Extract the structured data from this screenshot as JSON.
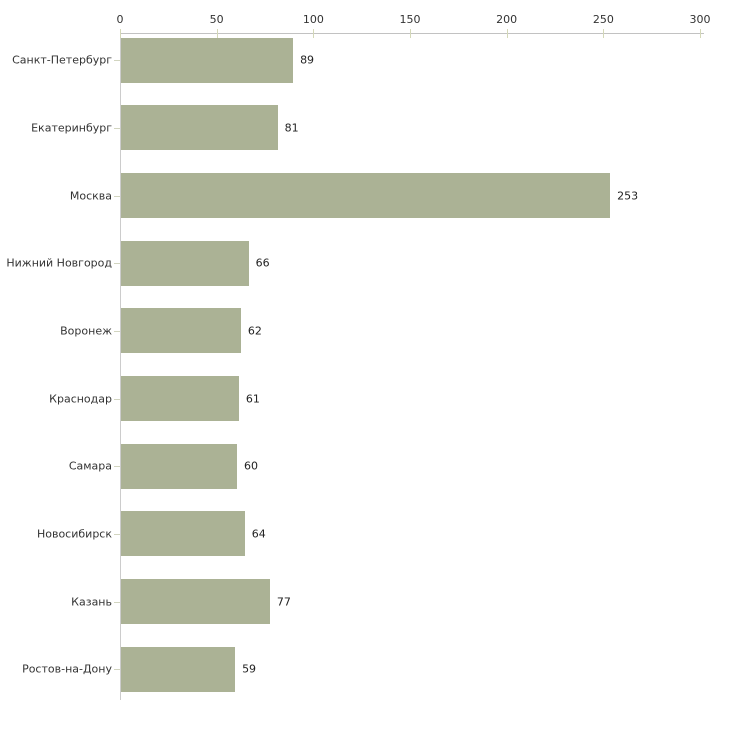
{
  "chart_data": {
    "type": "bar",
    "orientation": "horizontal",
    "title": "",
    "xlabel": "",
    "ylabel": "",
    "categories": [
      "Санкт-Петербург",
      "Екатеринбург",
      "Москва",
      "Нижний Новгород",
      "Воронеж",
      "Краснодар",
      "Самара",
      "Новосибирск",
      "Казань",
      "Ростов-на-Дону"
    ],
    "values": [
      89,
      81,
      253,
      66,
      62,
      61,
      60,
      64,
      77,
      59
    ],
    "data_labels": [
      "89",
      "81",
      "253",
      "66",
      "62",
      "61",
      "60",
      "64",
      "77",
      "59"
    ],
    "xlim": [
      0,
      300
    ],
    "x_ticks": [
      0,
      50,
      100,
      150,
      200,
      250,
      300
    ],
    "x_tick_labels": [
      "0",
      "50",
      "100",
      "150",
      "200",
      "250",
      "300"
    ],
    "grid": false,
    "legend": "none",
    "axis_position": "top",
    "colors": {
      "bar_fill": "#abb295",
      "axis_line": "#c2c2c2",
      "tick_mark": "#d4d8b8",
      "text": "#333333",
      "background": "#ffffff"
    }
  }
}
